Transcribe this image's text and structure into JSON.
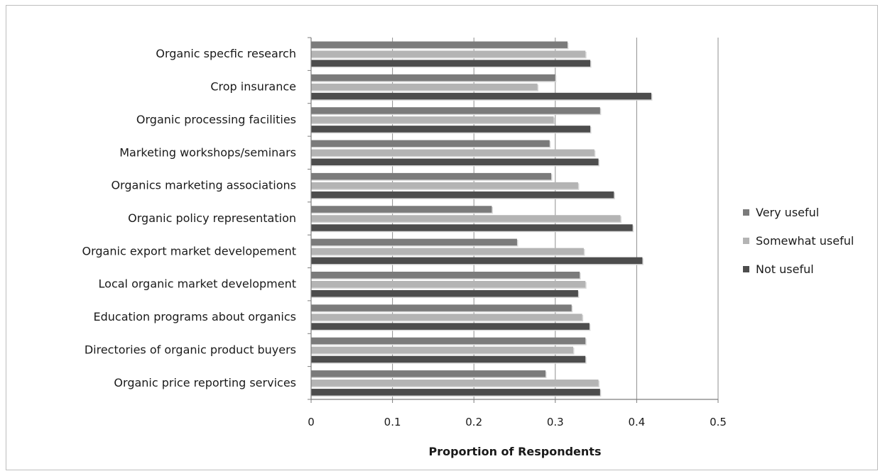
{
  "chart_data": {
    "type": "bar",
    "orientation": "horizontal",
    "categories": [
      "Organic specfic research",
      "Crop insurance",
      "Organic processing facilities",
      "Marketing workshops/seminars",
      "Organics marketing associations",
      "Organic policy representation",
      "Organic export market developement",
      "Local organic market development",
      "Education programs about organics",
      "Directories of organic product buyers",
      "Organic price reporting services"
    ],
    "series": [
      {
        "name": "Very useful",
        "color": "#7b7b7b",
        "values": [
          0.315,
          0.3,
          0.355,
          0.293,
          0.295,
          0.222,
          0.253,
          0.33,
          0.32,
          0.337,
          0.288
        ]
      },
      {
        "name": "Somewhat useful",
        "color": "#b4b4b4",
        "values": [
          0.337,
          0.278,
          0.298,
          0.348,
          0.328,
          0.38,
          0.335,
          0.337,
          0.333,
          0.322,
          0.353
        ]
      },
      {
        "name": "Not useful",
        "color": "#4d4d4d",
        "values": [
          0.343,
          0.418,
          0.343,
          0.353,
          0.372,
          0.395,
          0.407,
          0.328,
          0.342,
          0.337,
          0.355
        ]
      }
    ],
    "xlabel": "Proportion of Respondents",
    "ylabel": "",
    "xlim": [
      0,
      0.5
    ],
    "xticks": [
      "0",
      "0.1",
      "0.2",
      "0.3",
      "0.4",
      "0.5"
    ],
    "grid": "vertical",
    "legend_position": "right"
  }
}
